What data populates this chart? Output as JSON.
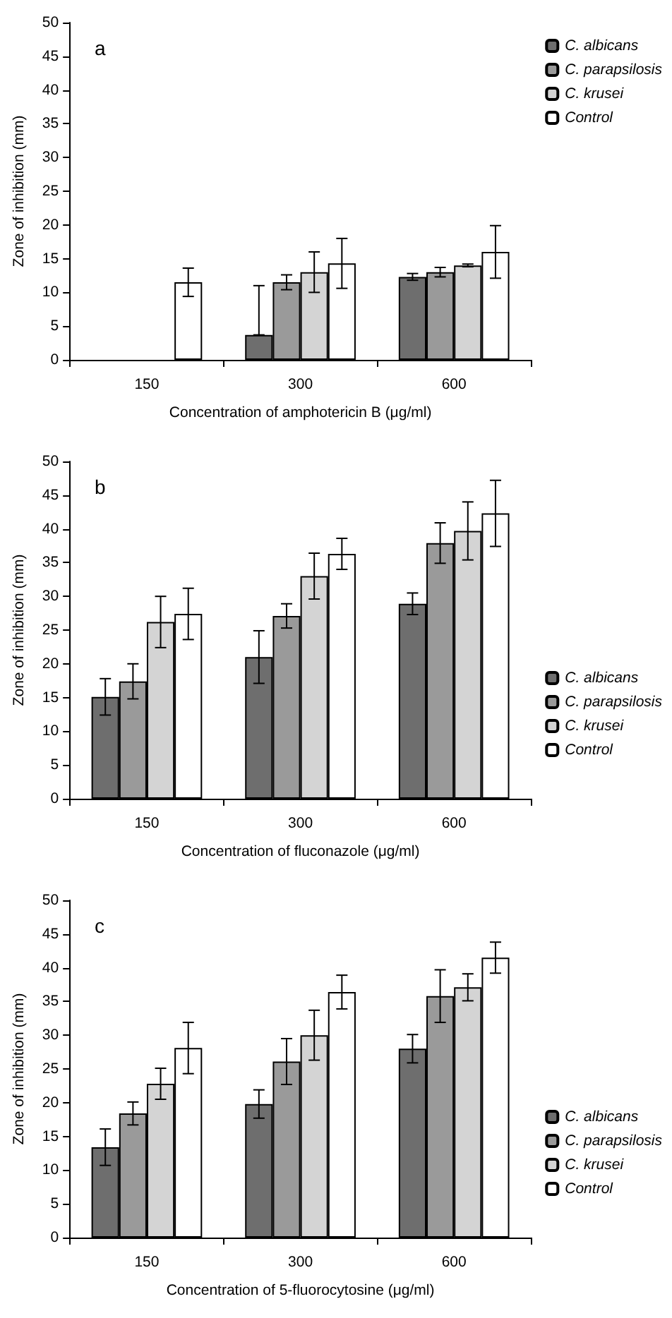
{
  "chart_data": [
    {
      "type": "bar",
      "title": "a",
      "xlabel": "Concentration of amphotericin B (μg/ml)",
      "ylabel": "Zone of inhibition (mm)",
      "categories": [
        "150",
        "300",
        "600"
      ],
      "ylim": [
        0,
        50
      ],
      "yticks": [
        0,
        5,
        10,
        15,
        20,
        25,
        30,
        35,
        40,
        45,
        50
      ],
      "legend": "top right",
      "series": [
        {
          "name": "C. albicans",
          "color": "#6e6e6e",
          "values": [
            null,
            3.7,
            12.3
          ],
          "errors": [
            null,
            [
              3.7,
              11.0
            ],
            0.5
          ]
        },
        {
          "name": "C. parapsilosis",
          "color": "#9a9a9a",
          "values": [
            null,
            11.5,
            13.0
          ],
          "errors": [
            null,
            1.1,
            0.7
          ]
        },
        {
          "name": "C. krusei",
          "color": "#d4d4d4",
          "values": [
            null,
            13.0,
            14.0
          ],
          "errors": [
            null,
            3.0,
            0.2
          ]
        },
        {
          "name": "Control",
          "color": "#ffffff",
          "values": [
            11.5,
            14.3,
            16.0
          ],
          "errors": [
            2.1,
            3.7,
            3.9
          ]
        }
      ]
    },
    {
      "type": "bar",
      "title": "b",
      "xlabel": "Concentration of fluconazole (μg/ml)",
      "ylabel": "Zone of inhibition (mm)",
      "categories": [
        "150",
        "300",
        "600"
      ],
      "ylim": [
        0,
        50
      ],
      "yticks": [
        0,
        5,
        10,
        15,
        20,
        25,
        30,
        35,
        40,
        45,
        50
      ],
      "legend": "bottom right",
      "series": [
        {
          "name": "C. albicans",
          "color": "#6e6e6e",
          "values": [
            15.1,
            21.0,
            28.9
          ],
          "errors": [
            2.7,
            3.9,
            1.6
          ]
        },
        {
          "name": "C. parapsilosis",
          "color": "#9a9a9a",
          "values": [
            17.4,
            27.1,
            37.9
          ],
          "errors": [
            2.6,
            1.8,
            3.0
          ]
        },
        {
          "name": "C. krusei",
          "color": "#d4d4d4",
          "values": [
            26.2,
            33.0,
            39.7
          ],
          "errors": [
            3.8,
            3.4,
            4.3
          ]
        },
        {
          "name": "Control",
          "color": "#ffffff",
          "values": [
            27.4,
            36.3,
            42.3
          ],
          "errors": [
            3.8,
            2.3,
            4.9
          ]
        }
      ]
    },
    {
      "type": "bar",
      "title": "c",
      "xlabel": "Concentration of 5-fluorocytosine (μg/ml)",
      "ylabel": "Zone of inhibition (mm)",
      "categories": [
        "150",
        "300",
        "600"
      ],
      "ylim": [
        0,
        50
      ],
      "yticks": [
        0,
        5,
        10,
        15,
        20,
        25,
        30,
        35,
        40,
        45,
        50
      ],
      "legend": "bottom right",
      "series": [
        {
          "name": "C. albicans",
          "color": "#6e6e6e",
          "values": [
            13.4,
            19.8,
            28.0
          ],
          "errors": [
            2.7,
            2.1,
            2.1
          ]
        },
        {
          "name": "C. parapsilosis",
          "color": "#9a9a9a",
          "values": [
            18.4,
            26.1,
            35.8
          ],
          "errors": [
            1.7,
            3.4,
            3.9
          ]
        },
        {
          "name": "C. krusei",
          "color": "#d4d4d4",
          "values": [
            22.8,
            30.0,
            37.1
          ],
          "errors": [
            2.3,
            3.7,
            2.0
          ]
        },
        {
          "name": "Control",
          "color": "#ffffff",
          "values": [
            28.1,
            36.4,
            41.5
          ],
          "errors": [
            3.8,
            2.5,
            2.3
          ]
        }
      ]
    }
  ]
}
